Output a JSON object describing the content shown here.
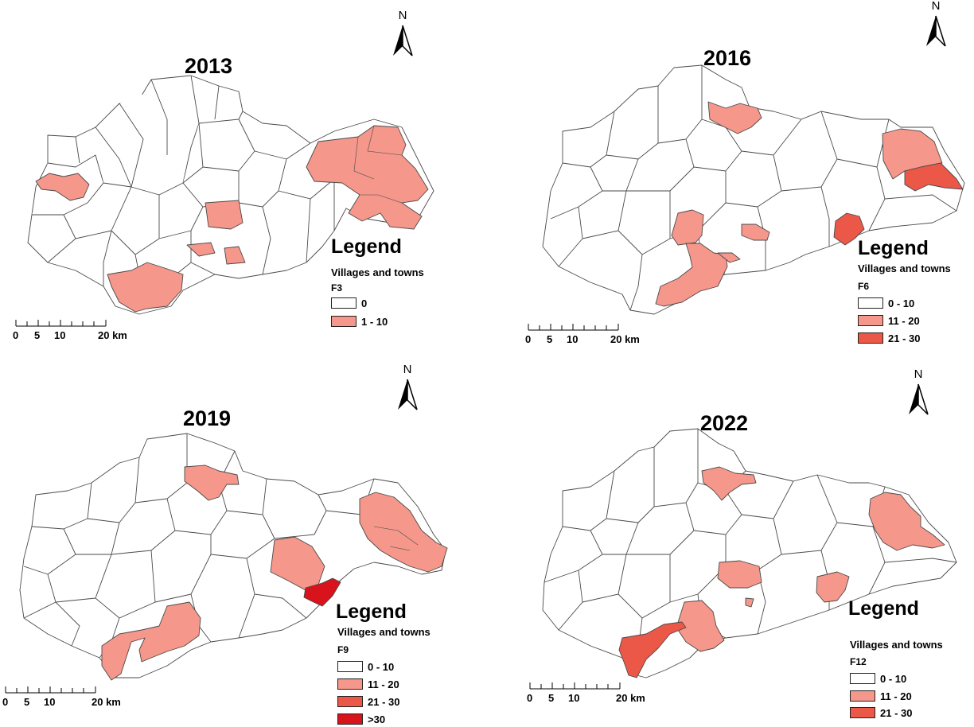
{
  "colors": {
    "class_0": "#ffffff",
    "class_1": "#f5978a",
    "class_2": "#ec5847",
    "class_3": "#d8131c",
    "boundary": "#4a4a4a"
  },
  "north_label": "N",
  "legend_title": "Legend",
  "legend_subtitle": "Villages and towns",
  "scale": {
    "ticks": [
      "0",
      "5",
      "10",
      "20 km"
    ]
  },
  "panels": [
    {
      "year": "2013",
      "field": "F3",
      "classes": [
        {
          "label": "0",
          "color": "#ffffff"
        },
        {
          "label": "1 - 10",
          "color": "#f5978a"
        }
      ]
    },
    {
      "year": "2016",
      "field": "F6",
      "classes": [
        {
          "label": "0 - 10",
          "color": "#ffffff"
        },
        {
          "label": "11 - 20",
          "color": "#f5978a"
        },
        {
          "label": "21 - 30",
          "color": "#ec5847"
        }
      ]
    },
    {
      "year": "2019",
      "field": "F9",
      "classes": [
        {
          "label": "0 - 10",
          "color": "#ffffff"
        },
        {
          "label": "11 - 20",
          "color": "#f5978a"
        },
        {
          "label": "21 - 30",
          "color": "#ec5847"
        },
        {
          "label": ">30",
          "color": "#d8131c"
        }
      ]
    },
    {
      "year": "2022",
      "field": "F12",
      "classes": [
        {
          "label": "0 - 10",
          "color": "#ffffff"
        },
        {
          "label": "11 - 20",
          "color": "#f5978a"
        },
        {
          "label": "21 - 30",
          "color": "#ec5847"
        }
      ]
    }
  ]
}
